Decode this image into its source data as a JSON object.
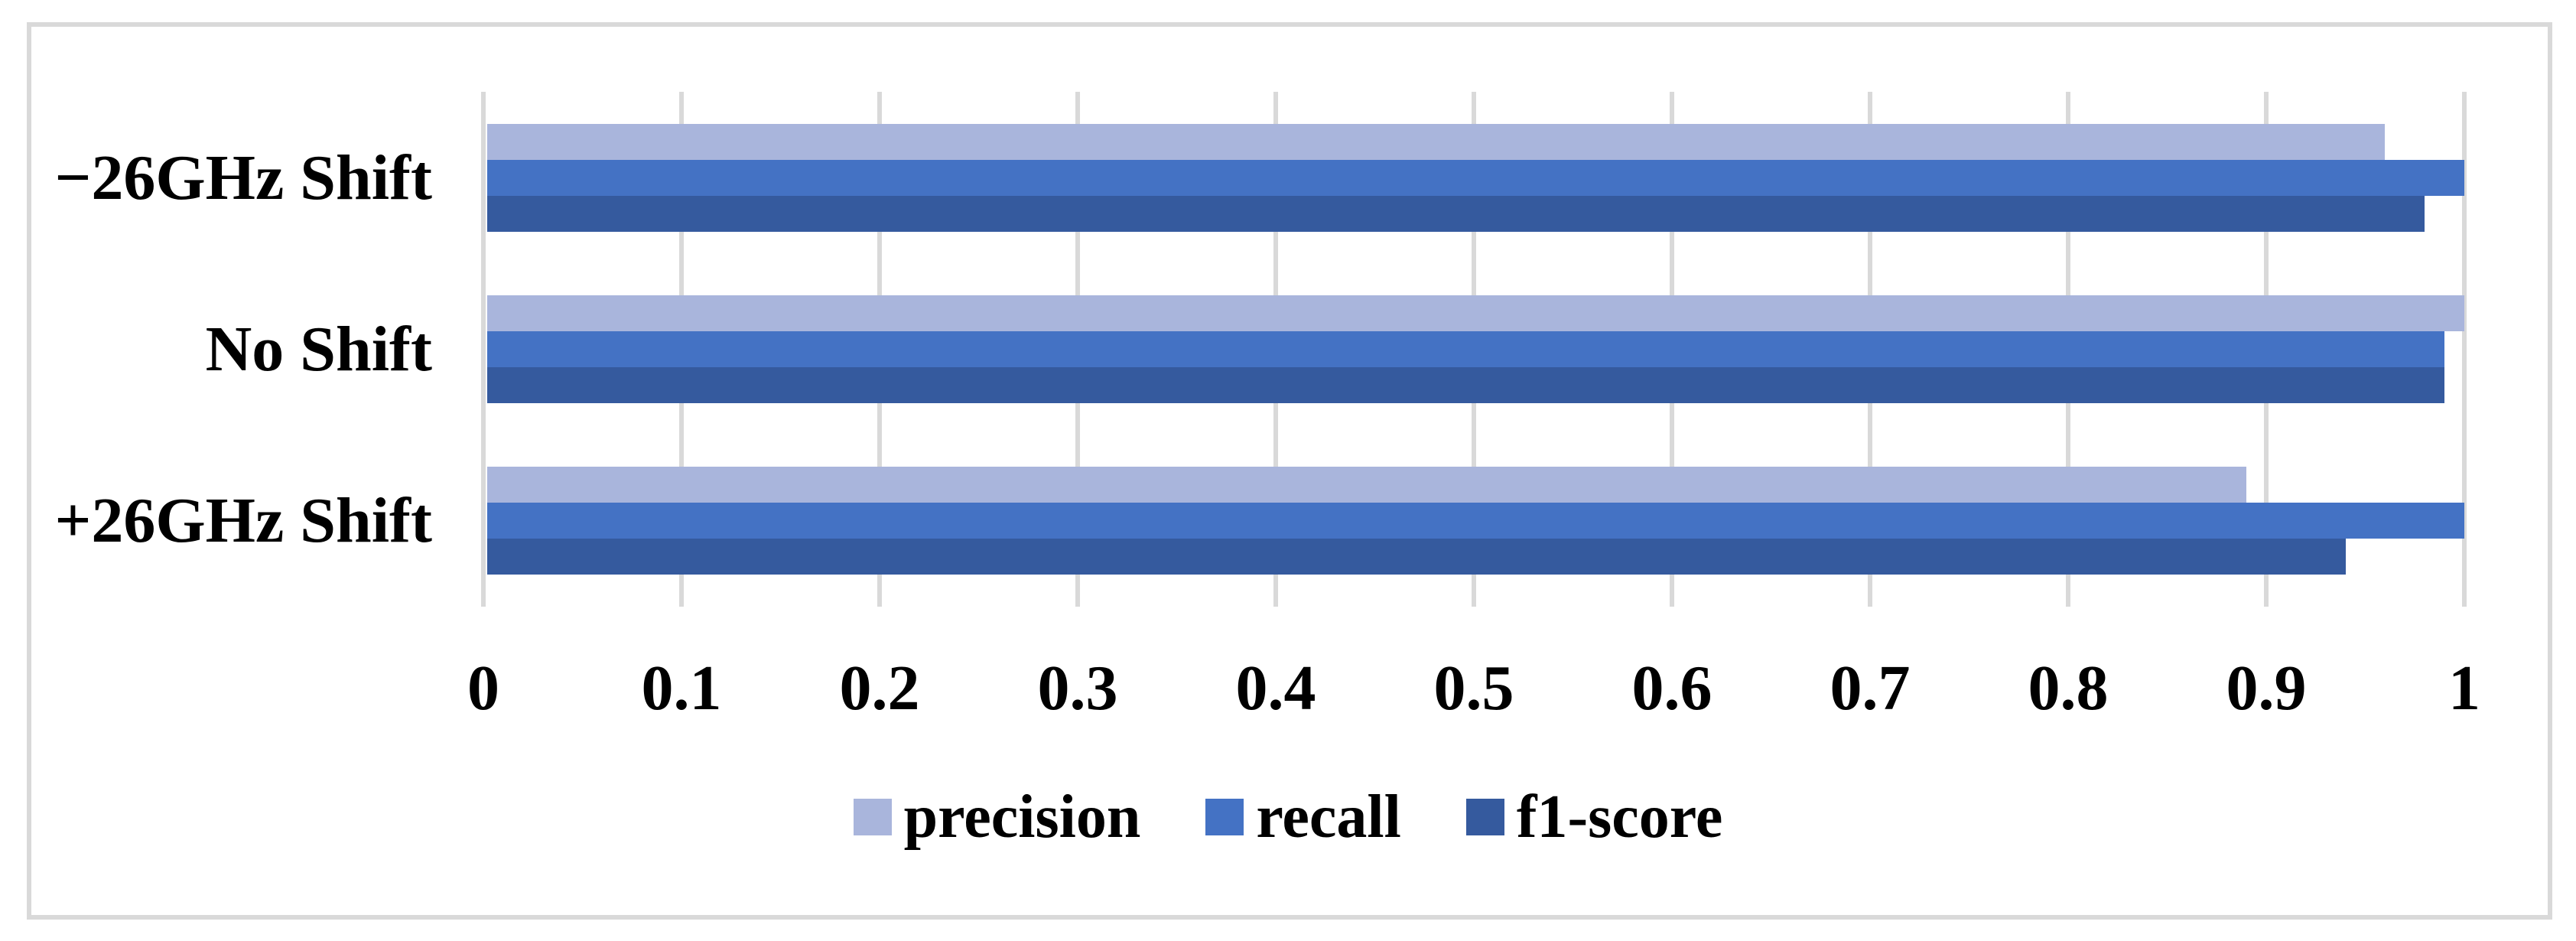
{
  "chart_data": {
    "type": "bar",
    "orientation": "horizontal",
    "title": "",
    "xlabel": "",
    "ylabel": "",
    "categories": [
      "−26GHz Shift",
      "No Shift",
      "+26GHz Shift"
    ],
    "series": [
      {
        "name": "precision",
        "color": "#a9b5dc",
        "values": [
          0.96,
          1.0,
          0.89
        ]
      },
      {
        "name": "recall",
        "color": "#4472c4",
        "values": [
          1.0,
          0.99,
          1.0
        ]
      },
      {
        "name": "f1-score",
        "color": "#355a9e",
        "values": [
          0.98,
          0.99,
          0.94
        ]
      }
    ],
    "xlim": [
      0,
      1
    ],
    "x_ticks": [
      0,
      0.1,
      0.2,
      0.3,
      0.4,
      0.5,
      0.6,
      0.7,
      0.8,
      0.9,
      1
    ],
    "x_tick_labels": [
      "0",
      "0.1",
      "0.2",
      "0.3",
      "0.4",
      "0.5",
      "0.6",
      "0.7",
      "0.8",
      "0.9",
      "1"
    ],
    "grid": true,
    "legend_position": "bottom"
  },
  "colors": {
    "grid": "#d9d9d9",
    "frame": "#d9d9d9",
    "text": "#000000",
    "background": "#ffffff"
  }
}
